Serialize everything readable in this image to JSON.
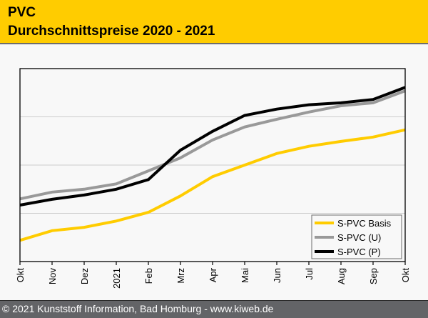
{
  "header": {
    "title": "PVC",
    "subtitle": "Durchschnittspreise 2020 - 2021"
  },
  "footer": {
    "text": "© 2021 Kunststoff Information, Bad Homburg - www.kiweb.de"
  },
  "colors": {
    "header_bg": "#ffcc00",
    "footer_bg": "#636467",
    "basis": "#ffcc00",
    "u": "#999999",
    "p": "#000000"
  },
  "chart_data": {
    "type": "line",
    "title": "PVC Durchschnittspreise 2020 - 2021",
    "xlabel": "",
    "ylabel": "",
    "x": [
      "Okt",
      "Nov",
      "Dez",
      "2021",
      "Feb",
      "Mrz",
      "Apr",
      "Mai",
      "Jun",
      "Jul",
      "Aug",
      "Sep",
      "Okt"
    ],
    "ylim": [
      0,
      4
    ],
    "y_unit_note": "no y tick labels shown; values in gridline units",
    "grid": true,
    "gridlines_y": [
      1,
      2,
      3
    ],
    "legend_position": "bottom-right",
    "series": [
      {
        "name": "S-PVC Basis",
        "color": "#ffcc00",
        "values": [
          0.44,
          0.64,
          0.71,
          0.84,
          1.02,
          1.36,
          1.76,
          2.0,
          2.24,
          2.39,
          2.49,
          2.58,
          2.73
        ]
      },
      {
        "name": "S-PVC (U)",
        "color": "#999999",
        "values": [
          1.3,
          1.44,
          1.5,
          1.61,
          1.88,
          2.15,
          2.52,
          2.79,
          2.95,
          3.1,
          3.23,
          3.29,
          3.54
        ]
      },
      {
        "name": "S-PVC (P)",
        "color": "#000000",
        "values": [
          1.17,
          1.29,
          1.38,
          1.5,
          1.7,
          2.31,
          2.7,
          3.03,
          3.16,
          3.25,
          3.29,
          3.36,
          3.61
        ]
      }
    ]
  }
}
